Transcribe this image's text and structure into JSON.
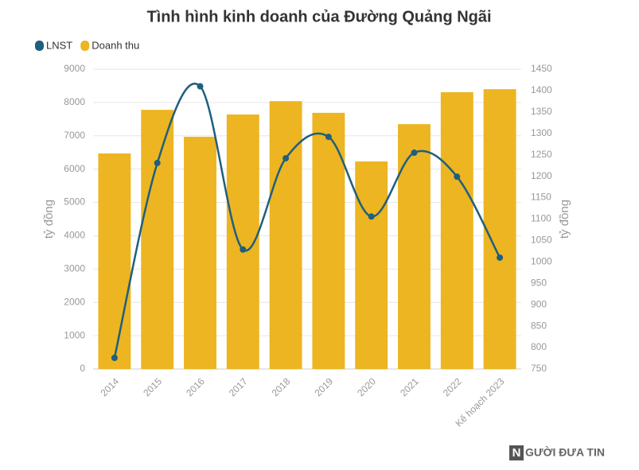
{
  "chart_data": {
    "type": "combo",
    "title": "Tình hình kinh doanh của Đường Quảng Ngãi",
    "categories": [
      "2014",
      "2015",
      "2016",
      "2017",
      "2018",
      "2019",
      "2020",
      "2021",
      "2022",
      "Kế hoạch 2023"
    ],
    "series": [
      {
        "name": "LNST",
        "type": "line",
        "axis": "y2",
        "color": "#1f5f7f",
        "values": [
          776,
          1231,
          1410,
          1029,
          1242,
          1292,
          1106,
          1255,
          1199,
          1010
        ]
      },
      {
        "name": "Doanh thu",
        "type": "bar",
        "color": "#ecb521",
        "values": [
          6470,
          7780,
          6970,
          7640,
          8040,
          7690,
          6230,
          7350,
          8310,
          8400
        ]
      }
    ],
    "ylabel": "tỷ đồng",
    "y2label": "tỷ đồng",
    "ylim": [
      0,
      9000
    ],
    "yticks": [
      0,
      1000,
      2000,
      3000,
      4000,
      5000,
      6000,
      7000,
      8000,
      9000
    ],
    "y2lim": [
      750,
      1450
    ],
    "y2ticks": [
      750,
      800,
      850,
      900,
      950,
      1000,
      1050,
      1100,
      1150,
      1200,
      1250,
      1300,
      1350,
      1400,
      1450
    ],
    "grid": true,
    "legend": "top-left"
  },
  "watermark": {
    "logo": "N",
    "text": "GƯỜI ĐƯA TIN"
  }
}
